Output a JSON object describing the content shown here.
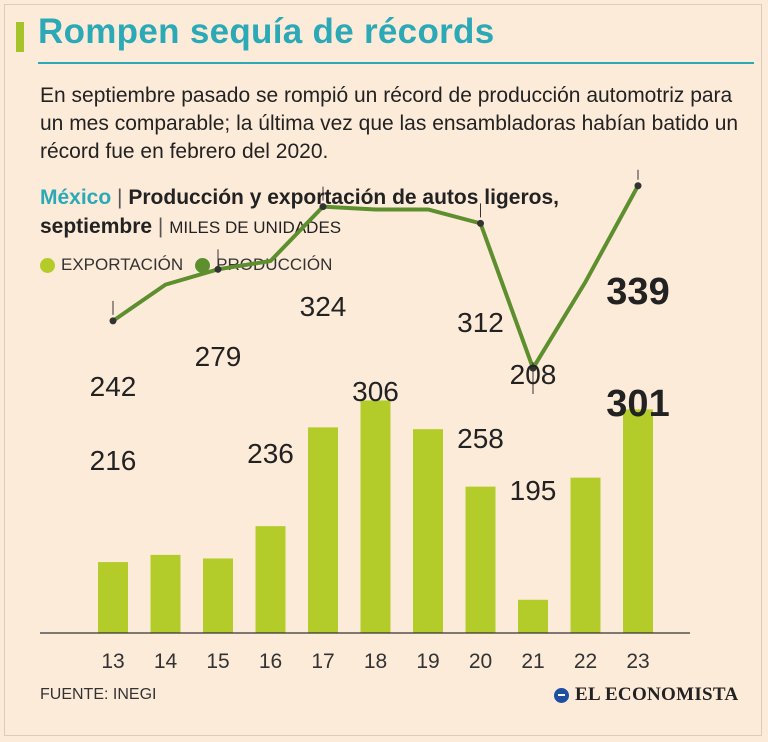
{
  "header": {
    "title": "Rompen sequía de récords",
    "intro": "En septiembre pasado se rompió un récord de producción automotriz para un mes comparable; la última vez que las ensambladoras habían batido un récord fue en febrero del 2020."
  },
  "subtitle": {
    "country": "México",
    "separator": "|",
    "name_line1": "Producción y exportación de autos ligeros,",
    "name_line2": "septiembre",
    "unit": "MILES DE UNIDADES"
  },
  "legend": {
    "export": "EXPORTACIÓN",
    "production": "PRODUCCIÓN"
  },
  "colors": {
    "accent": "#2ba9b7",
    "export_bar": "#b4cc2a",
    "production_line": "#5e8f2e",
    "background": "#fdebd9"
  },
  "chart_data": {
    "type": "bar",
    "title": "Producción y exportación de autos ligeros, septiembre",
    "ylabel": "MILES DE UNIDADES",
    "categories": [
      "13",
      "14",
      "15",
      "16",
      "17",
      "18",
      "19",
      "20",
      "21",
      "22",
      "23"
    ],
    "series": [
      {
        "name": "EXPORTACIÓN",
        "kind": "bar",
        "values": [
          216,
          220,
          218,
          236,
          291,
          306,
          290,
          258,
          195,
          263,
          301
        ]
      },
      {
        "name": "PRODUCCIÓN",
        "kind": "line",
        "values": [
          242,
          268,
          279,
          285,
          324,
          322,
          322,
          312,
          208,
          270,
          339
        ]
      }
    ],
    "export_labels": [
      {
        "index": 0,
        "text": "216"
      },
      {
        "index": 3,
        "text": "236"
      },
      {
        "index": 5,
        "text": "306"
      },
      {
        "index": 7,
        "text": "258"
      },
      {
        "index": 8,
        "text": "195"
      },
      {
        "index": 10,
        "text": "301"
      }
    ],
    "production_labels": [
      {
        "index": 0,
        "text": "242"
      },
      {
        "index": 2,
        "text": "279"
      },
      {
        "index": 4,
        "text": "324"
      },
      {
        "index": 7,
        "text": "312"
      },
      {
        "index": 8,
        "text": "208"
      },
      {
        "index": 10,
        "text": "339"
      }
    ],
    "ylim": [
      0,
      350
    ],
    "grid": false,
    "legend_position": "top-left"
  },
  "footer": {
    "source": "FUENTE: INEGI",
    "brand": "EL ECONOMISTA"
  }
}
